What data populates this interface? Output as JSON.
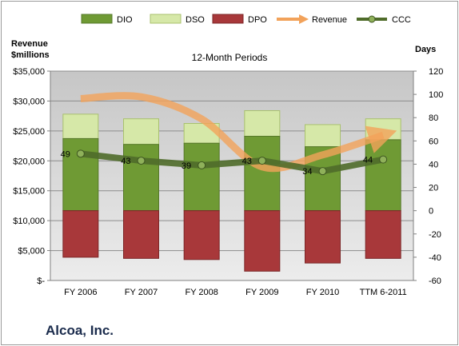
{
  "company": "Alcoa, Inc.",
  "chart_data": {
    "type": "bar",
    "title": "12-Month Periods",
    "left_axis_title": [
      "Revenue",
      "$millions"
    ],
    "right_axis_title": "Days",
    "categories": [
      "FY 2006",
      "FY 2007",
      "FY 2008",
      "FY 2009",
      "FY 2010",
      "TTM 6-2011"
    ],
    "left_ylim": [
      0,
      35000
    ],
    "left_ticks": [
      "$-",
      "$5,000",
      "$10,000",
      "$15,000",
      "$20,000",
      "$25,000",
      "$30,000",
      "$35,000"
    ],
    "right_ylim": [
      -60,
      120
    ],
    "right_ticks": [
      "-60",
      "-40",
      "-20",
      "0",
      "20",
      "40",
      "60",
      "80",
      "100",
      "120"
    ],
    "legend_position": "top",
    "series": [
      {
        "name": "DIO",
        "kind": "stacked-bar",
        "axis": "right",
        "color": "#6f9a34",
        "values": [
          62,
          57,
          58,
          64,
          55,
          61
        ]
      },
      {
        "name": "DSO",
        "kind": "stacked-bar",
        "axis": "right",
        "color": "#d6e8a8",
        "values": [
          21,
          22,
          17,
          22,
          19,
          18
        ]
      },
      {
        "name": "DPO",
        "kind": "negative-bar",
        "axis": "right",
        "color": "#a8383a",
        "values": [
          -40,
          -41,
          -42,
          -52,
          -45,
          -41
        ]
      },
      {
        "name": "Revenue",
        "kind": "arrow-line",
        "axis": "left",
        "color": "#f2a25a",
        "values": [
          30400,
          30700,
          27000,
          19000,
          21000,
          24300
        ]
      },
      {
        "name": "CCC",
        "kind": "line-markers",
        "axis": "right",
        "color": "#4f6c2a",
        "values": [
          49,
          43,
          39,
          43,
          34,
          44
        ]
      }
    ],
    "ccc_labels": [
      "49",
      "43",
      "39",
      "43",
      "34",
      "44"
    ]
  }
}
